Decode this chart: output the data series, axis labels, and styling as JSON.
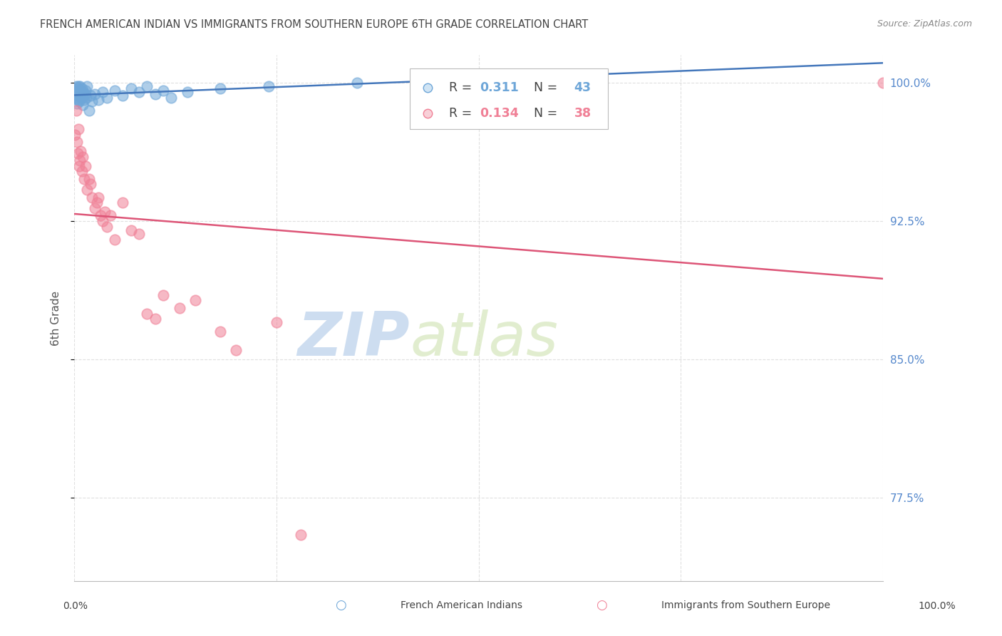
{
  "title": "FRENCH AMERICAN INDIAN VS IMMIGRANTS FROM SOUTHERN EUROPE 6TH GRADE CORRELATION CHART",
  "source": "Source: ZipAtlas.com",
  "ylabel": "6th Grade",
  "ytick_values": [
    77.5,
    85.0,
    92.5,
    100.0
  ],
  "xlim": [
    0.0,
    100.0
  ],
  "ylim": [
    73.0,
    101.5
  ],
  "r_blue": 0.311,
  "n_blue": 43,
  "r_pink": 0.134,
  "n_pink": 38,
  "legend_label_blue": "French American Indians",
  "legend_label_pink": "Immigrants from Southern Europe",
  "blue_color": "#6EA6D8",
  "pink_color": "#F08096",
  "trendline_blue_color": "#4477BB",
  "trendline_pink_color": "#DD5577",
  "blue_x": [
    0.1,
    0.2,
    0.2,
    0.3,
    0.3,
    0.4,
    0.4,
    0.5,
    0.5,
    0.6,
    0.6,
    0.7,
    0.7,
    0.8,
    0.9,
    0.9,
    1.0,
    1.0,
    1.1,
    1.2,
    1.3,
    1.4,
    1.5,
    1.6,
    1.8,
    2.0,
    2.2,
    2.5,
    3.0,
    3.5,
    4.0,
    5.0,
    6.0,
    7.0,
    8.0,
    9.0,
    10.0,
    11.0,
    12.0,
    14.0,
    18.0,
    24.0,
    35.0
  ],
  "blue_y": [
    99.5,
    99.8,
    99.2,
    99.6,
    98.9,
    99.7,
    99.3,
    99.8,
    99.1,
    99.5,
    99.0,
    99.8,
    99.4,
    99.6,
    99.2,
    99.7,
    99.3,
    98.8,
    99.5,
    99.1,
    99.4,
    99.6,
    99.2,
    99.8,
    98.5,
    99.3,
    99.0,
    99.4,
    99.1,
    99.5,
    99.2,
    99.6,
    99.3,
    99.7,
    99.5,
    99.8,
    99.4,
    99.6,
    99.2,
    99.5,
    99.7,
    99.8,
    100.0
  ],
  "pink_x": [
    0.1,
    0.2,
    0.3,
    0.4,
    0.5,
    0.6,
    0.7,
    0.8,
    0.9,
    1.0,
    1.2,
    1.4,
    1.6,
    1.8,
    2.0,
    2.2,
    2.5,
    2.8,
    3.0,
    3.2,
    3.5,
    3.8,
    4.0,
    4.5,
    5.0,
    6.0,
    7.0,
    8.0,
    9.0,
    10.0,
    11.0,
    13.0,
    15.0,
    18.0,
    20.0,
    25.0,
    28.0,
    100.0
  ],
  "pink_y": [
    97.2,
    98.5,
    96.8,
    96.2,
    97.5,
    95.5,
    95.8,
    96.3,
    95.2,
    96.0,
    94.8,
    95.5,
    94.2,
    94.8,
    94.5,
    93.8,
    93.2,
    93.5,
    93.8,
    92.8,
    92.5,
    93.0,
    92.2,
    92.8,
    91.5,
    93.5,
    92.0,
    91.8,
    87.5,
    87.2,
    88.5,
    87.8,
    88.2,
    86.5,
    85.5,
    87.0,
    75.5,
    100.0
  ],
  "watermark_zip": "ZIP",
  "watermark_atlas": "atlas",
  "background_color": "#FFFFFF",
  "grid_color": "#CCCCCC",
  "right_axis_label_color": "#5588CC",
  "title_color": "#444444",
  "source_color": "#888888"
}
